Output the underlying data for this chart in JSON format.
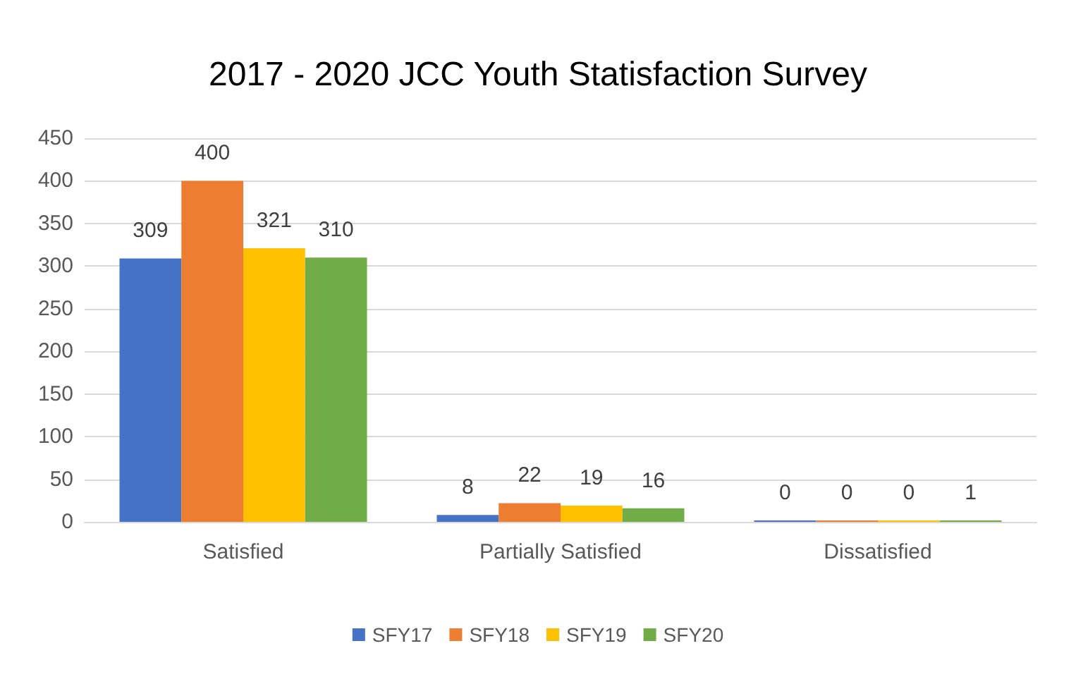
{
  "chart_data": {
    "type": "bar",
    "title": "2017 - 2020 JCC Youth Statisfaction Survey",
    "categories": [
      "Satisfied",
      "Partially Satisfied",
      "Dissatisfied"
    ],
    "series": [
      {
        "name": "SFY17",
        "color": "#4472c4",
        "values": [
          309,
          8,
          0
        ]
      },
      {
        "name": "SFY18",
        "color": "#ed7d31",
        "values": [
          400,
          22,
          0
        ]
      },
      {
        "name": "SFY19",
        "color": "#ffc000",
        "values": [
          321,
          19,
          0
        ]
      },
      {
        "name": "SFY20",
        "color": "#70ad47",
        "values": [
          310,
          16,
          1
        ]
      }
    ],
    "ylim": [
      0,
      450
    ],
    "yticks": [
      0,
      50,
      100,
      150,
      200,
      250,
      300,
      350,
      400,
      450
    ],
    "grid": "y",
    "legend": "bottom",
    "data_labels": true
  }
}
